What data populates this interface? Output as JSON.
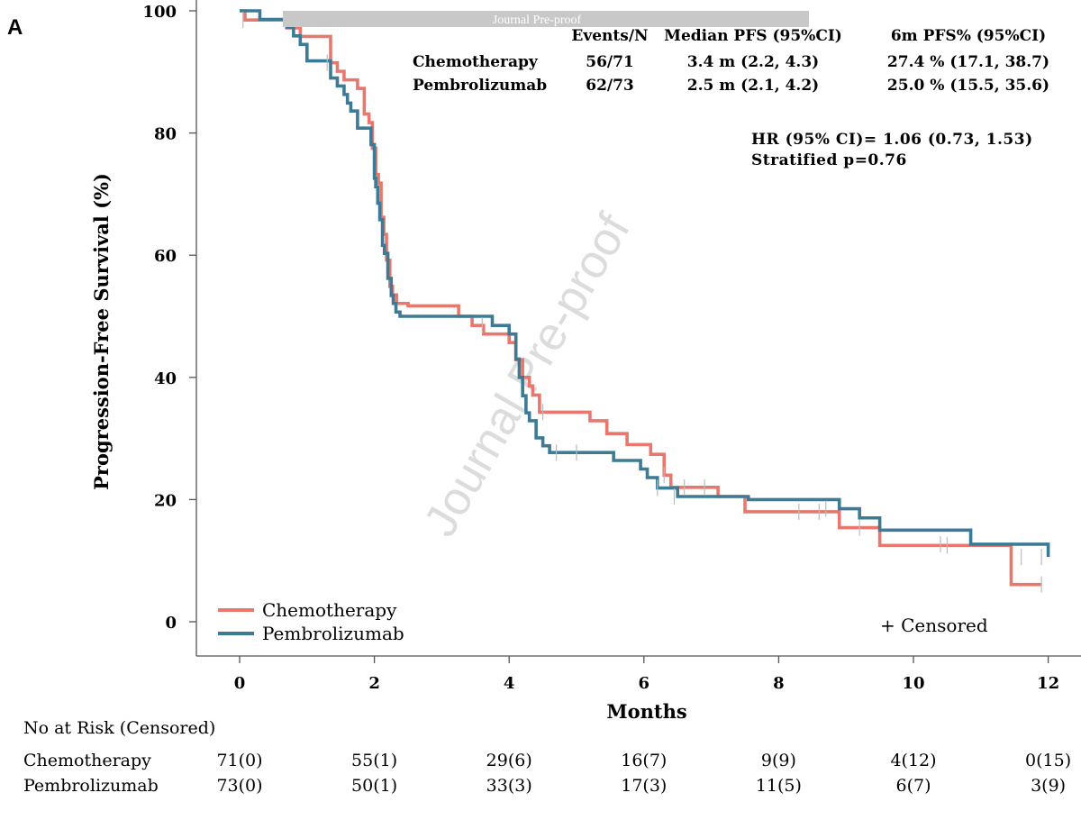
{
  "panel_label": "A",
  "banner": "Journal Pre-proof",
  "watermark": "Journal Pre-proof",
  "colors": {
    "chemotherapy": "#e8786e",
    "pembrolizumab": "#3d7a95",
    "banner": "#c8c8c8",
    "censor": "#bbbbbb"
  },
  "chart_data": {
    "type": "line",
    "xlabel": "Months",
    "ylabel": "Progression-Free Survival (%)",
    "xlim": [
      -0.6,
      12.4
    ],
    "ylim": [
      -4,
      100
    ],
    "xticks": [
      0,
      2,
      4,
      6,
      8,
      10,
      12
    ],
    "yticks": [
      0,
      20,
      40,
      60,
      80,
      100
    ],
    "series": [
      {
        "name": "Chemotherapy",
        "color": "#e8786e",
        "x": [
          0,
          0.08,
          0.45,
          0.7,
          0.9,
          1.05,
          1.35,
          1.45,
          1.55,
          1.75,
          1.85,
          1.92,
          1.97,
          2.02,
          2.06,
          2.1,
          2.14,
          2.18,
          2.23,
          2.27,
          2.33,
          2.4,
          2.5,
          3.25,
          3.45,
          3.62,
          4.0,
          4.1,
          4.2,
          4.3,
          4.35,
          4.45,
          4.8,
          5.2,
          5.45,
          5.75,
          6.1,
          6.25,
          6.3,
          6.4,
          7.1,
          7.5,
          8.9,
          9.5,
          11.45,
          11.9
        ],
        "y": [
          100,
          98.5,
          98.5,
          97.2,
          95.8,
          95.8,
          91.5,
          90.1,
          88.7,
          87.3,
          83.1,
          81.7,
          77.5,
          73.2,
          71.8,
          66.2,
          63.4,
          59.2,
          54.9,
          53.5,
          52.1,
          52.1,
          51.7,
          50.0,
          48.5,
          47.1,
          45.7,
          42.9,
          40.0,
          38.6,
          37.1,
          34.3,
          34.3,
          32.9,
          30.8,
          29.0,
          27.4,
          27.4,
          24.0,
          22.0,
          20.5,
          18.0,
          15.4,
          12.5,
          6.1,
          6.1
        ]
      },
      {
        "name": "Pembrolizumab",
        "color": "#3d7a95",
        "x": [
          0,
          0.3,
          0.7,
          0.8,
          0.9,
          1.0,
          1.35,
          1.45,
          1.55,
          1.6,
          1.65,
          1.75,
          1.95,
          2.0,
          2.02,
          2.05,
          2.08,
          2.12,
          2.15,
          2.2,
          2.25,
          2.28,
          2.32,
          2.38,
          2.5,
          3.75,
          4.0,
          4.1,
          4.15,
          4.2,
          4.25,
          4.3,
          4.4,
          4.5,
          4.6,
          4.8,
          5.35,
          5.55,
          5.95,
          6.05,
          6.2,
          6.5,
          7.55,
          8.9,
          9.2,
          9.5,
          10.85,
          12.0
        ],
        "y": [
          100,
          98.6,
          97.3,
          95.9,
          94.5,
          91.8,
          89.0,
          87.7,
          86.3,
          84.9,
          83.6,
          80.8,
          78.1,
          72.6,
          71.2,
          68.5,
          65.8,
          61.6,
          60.3,
          56.2,
          53.4,
          52.1,
          50.7,
          50.0,
          50.0,
          48.5,
          47.1,
          43.0,
          40.0,
          37.0,
          34.2,
          32.9,
          30.1,
          28.8,
          27.7,
          27.7,
          27.7,
          26.4,
          25.0,
          23.6,
          21.9,
          20.5,
          20.0,
          18.5,
          17.0,
          15.0,
          12.7,
          10.6
        ]
      }
    ],
    "legend": [
      "Chemotherapy",
      "Pembrolizumab"
    ],
    "legend_placement": "bottom-left",
    "censored_label": "+ Censored",
    "grid": false
  },
  "stats_table": {
    "headers": [
      "Events/N",
      "Median PFS (95%CI)",
      "6m PFS% (95%CI)"
    ],
    "rows": [
      {
        "label": "Chemotherapy",
        "events": "56/71",
        "median": "3.4 m (2.2, 4.3)",
        "pfs6m": "27.4 % (17.1, 38.7)"
      },
      {
        "label": "Pembrolizumab",
        "events": "62/73",
        "median": "2.5 m (2.1, 4.2)",
        "pfs6m": "25.0 % (15.5, 35.6)"
      }
    ]
  },
  "hr_text": "HR (95% CI)= 1.06 (0.73, 1.53)",
  "p_text": "Stratified p=0.76",
  "risk_table": {
    "title": "No at Risk (Censored)",
    "rows": [
      {
        "label": "Chemotherapy",
        "values": [
          "71(0)",
          "55(1)",
          "29(6)",
          "16(7)",
          "9(9)",
          "4(12)",
          "0(15)"
        ]
      },
      {
        "label": "Pembrolizumab",
        "values": [
          "73(0)",
          "50(1)",
          "33(3)",
          "17(3)",
          "11(5)",
          "6(7)",
          "3(9)"
        ]
      }
    ]
  }
}
